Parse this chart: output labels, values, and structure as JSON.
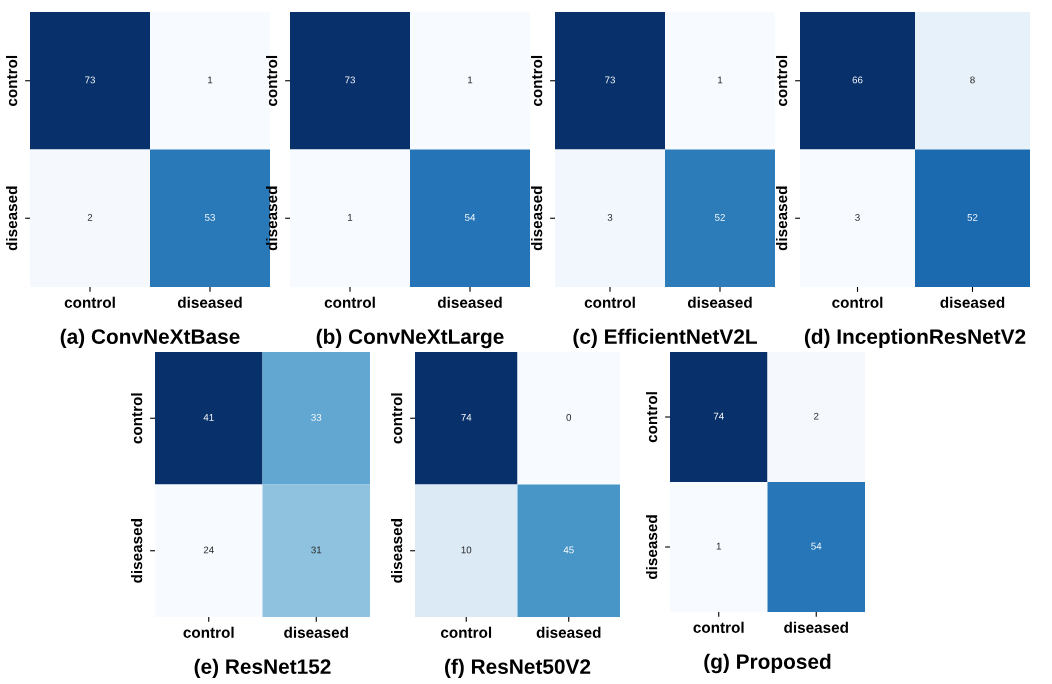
{
  "chart_data": [
    {
      "type": "heatmap",
      "title": "(a) ConvNeXtBase",
      "categories": [
        "control",
        "diseased"
      ],
      "y_categories": [
        "control",
        "diseased"
      ],
      "cells": [
        [
          73,
          1
        ],
        [
          2,
          53
        ]
      ],
      "data_labels": true
    },
    {
      "type": "heatmap",
      "title": "(b) ConvNeXtLarge",
      "categories": [
        "control",
        "diseased"
      ],
      "y_categories": [
        "control",
        "diseased"
      ],
      "cells": [
        [
          73,
          1
        ],
        [
          1,
          54
        ]
      ],
      "data_labels": true
    },
    {
      "type": "heatmap",
      "title": "(c) EfficientNetV2L",
      "categories": [
        "control",
        "diseased"
      ],
      "y_categories": [
        "control",
        "diseased"
      ],
      "cells": [
        [
          73,
          1
        ],
        [
          3,
          52
        ]
      ],
      "data_labels": true
    },
    {
      "type": "heatmap",
      "title": "(d) InceptionResNetV2",
      "categories": [
        "control",
        "diseased"
      ],
      "y_categories": [
        "control",
        "diseased"
      ],
      "cells": [
        [
          66,
          8
        ],
        [
          3,
          52
        ]
      ],
      "data_labels": true
    },
    {
      "type": "heatmap",
      "title": "(e) ResNet152",
      "categories": [
        "control",
        "diseased"
      ],
      "y_categories": [
        "control",
        "diseased"
      ],
      "cells": [
        [
          41,
          33
        ],
        [
          24,
          31
        ]
      ],
      "data_labels": true
    },
    {
      "type": "heatmap",
      "title": "(f) ResNet50V2",
      "categories": [
        "control",
        "diseased"
      ],
      "y_categories": [
        "control",
        "diseased"
      ],
      "cells": [
        [
          74,
          0
        ],
        [
          10,
          45
        ]
      ],
      "data_labels": true
    },
    {
      "type": "heatmap",
      "title": "(g) Proposed",
      "categories": [
        "control",
        "diseased"
      ],
      "y_categories": [
        "control",
        "diseased"
      ],
      "cells": [
        [
          74,
          2
        ],
        [
          1,
          54
        ]
      ],
      "data_labels": true
    }
  ]
}
